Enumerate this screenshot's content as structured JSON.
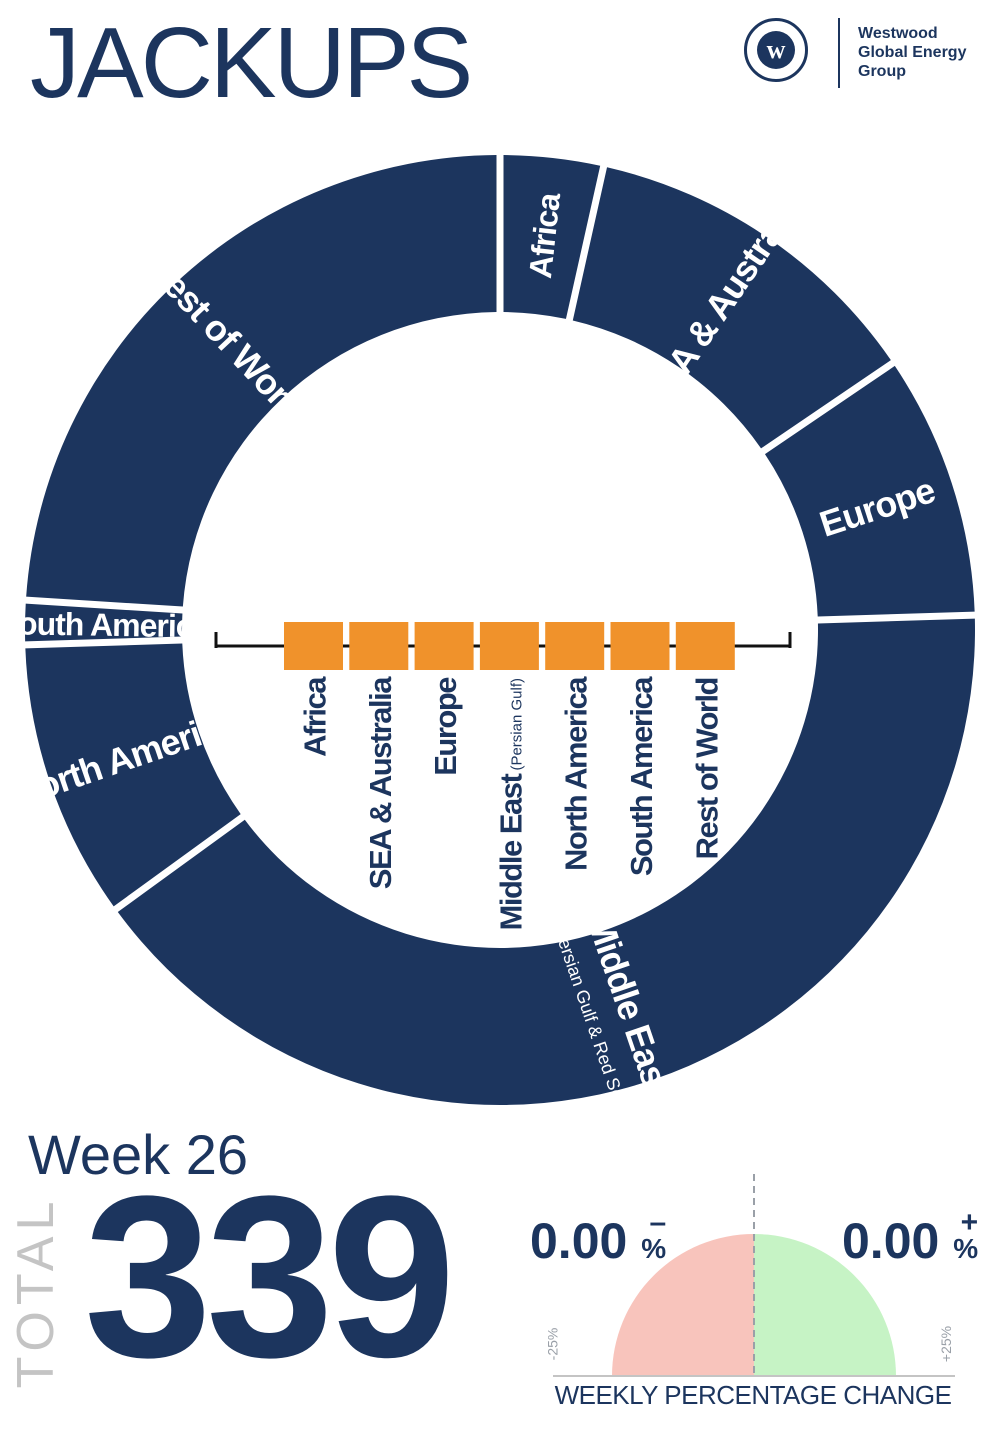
{
  "title": "JACKUPS",
  "brand": {
    "logo_letter": "w",
    "name": "Westwood Global Energy Group"
  },
  "chart_data": {
    "type": "pie",
    "style": "donut",
    "slices": [
      {
        "label": "Africa",
        "value": 3.5
      },
      {
        "label": "SEA & Australia",
        "value": 12
      },
      {
        "label": "Europe",
        "value": 9
      },
      {
        "label": "Middle East",
        "sublabel": "(Persian Gulf & Red Sea)",
        "value": 40.5
      },
      {
        "label": "North America",
        "value": 9.5
      },
      {
        "label": "South America",
        "value": 1.5
      },
      {
        "label": "Rest of World",
        "value": 24
      }
    ],
    "colors": {
      "slice": "#1c355e",
      "label_text": "#ffffff"
    },
    "legend": {
      "position": "center",
      "swatch_color": "#f0922b",
      "items": [
        {
          "label": "Africa"
        },
        {
          "label": "SEA & Australia"
        },
        {
          "label": "Europe"
        },
        {
          "label": "Middle East",
          "sublabel": "(Persian Gulf)"
        },
        {
          "label": "North America"
        },
        {
          "label": "South America"
        },
        {
          "label": "Rest of World"
        }
      ]
    }
  },
  "week": "Week 26",
  "total": {
    "label": "TOTAL",
    "value": "339"
  },
  "weekly_change": {
    "negative": {
      "value": "0.00",
      "sign": "–",
      "unit": "%",
      "level": 0
    },
    "positive": {
      "value": "0.00",
      "sign": "+",
      "unit": "%",
      "level": 0
    },
    "min_label": "-25%",
    "max_label": "+25%",
    "caption": "WEEKLY PERCENTAGE CHANGE",
    "colors": {
      "negative": "#f8c4bc",
      "positive": "#c6f3c5"
    }
  }
}
